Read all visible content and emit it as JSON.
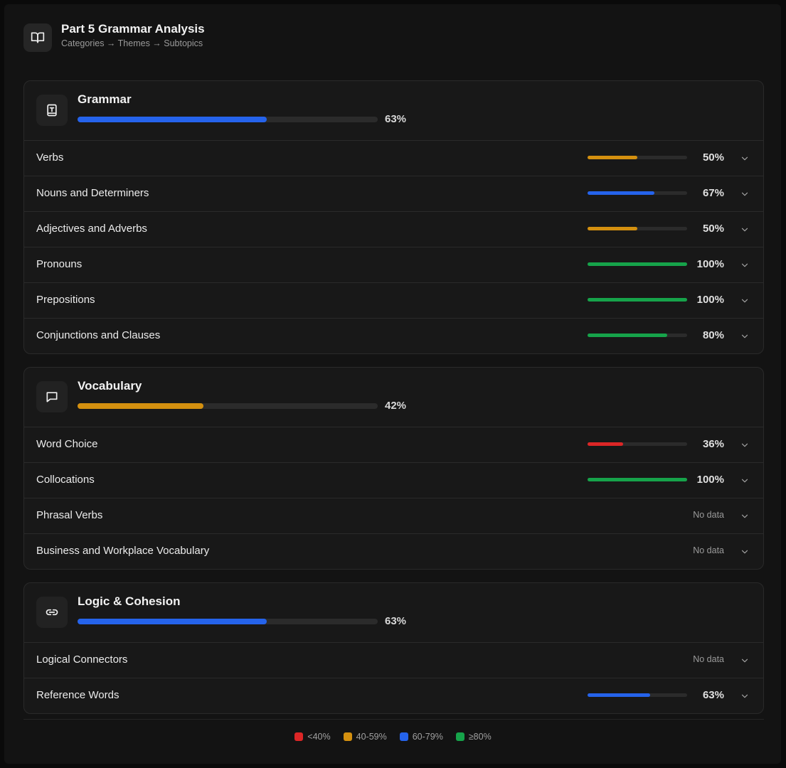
{
  "header": {
    "title": "Part 5 Grammar Analysis",
    "subtitle": "Categories → Themes → Subtopics"
  },
  "cards": [
    {
      "name": "Grammar",
      "icon": "book",
      "score": {
        "value": 63,
        "label": "63%",
        "color": "#2563eb"
      },
      "topics": [
        {
          "name": "Verbs",
          "score": {
            "value": 50,
            "label": "50%",
            "color": "#d4900f"
          }
        },
        {
          "name": "Nouns and Determiners",
          "score": {
            "value": 67,
            "label": "67%",
            "color": "#2563eb"
          }
        },
        {
          "name": "Adjectives and Adverbs",
          "score": {
            "value": 50,
            "label": "50%",
            "color": "#d4900f"
          }
        },
        {
          "name": "Pronouns",
          "score": {
            "value": 100,
            "label": "100%",
            "color": "#16a34a"
          }
        },
        {
          "name": "Prepositions",
          "score": {
            "value": 100,
            "label": "100%",
            "color": "#16a34a"
          }
        },
        {
          "name": "Conjunctions and Clauses",
          "score": {
            "value": 80,
            "label": "80%",
            "color": "#16a34a"
          }
        }
      ]
    },
    {
      "name": "Vocabulary",
      "icon": "chat",
      "score": {
        "value": 42,
        "label": "42%",
        "color": "#d4900f"
      },
      "topics": [
        {
          "name": "Word Choice",
          "score": {
            "value": 36,
            "label": "36%",
            "color": "#dc2626"
          }
        },
        {
          "name": "Collocations",
          "score": {
            "value": 100,
            "label": "100%",
            "color": "#16a34a"
          }
        },
        {
          "name": "Phrasal Verbs",
          "score": {
            "label": "No data"
          }
        },
        {
          "name": "Business and Workplace Vocabulary",
          "score": {
            "label": "No data"
          }
        }
      ]
    },
    {
      "name": "Logic & Cohesion",
      "icon": "link",
      "score": {
        "value": 63,
        "label": "63%",
        "color": "#2563eb"
      },
      "topics": [
        {
          "name": "Logical Connectors",
          "score": {
            "label": "No data"
          }
        },
        {
          "name": "Reference Words",
          "score": {
            "value": 63,
            "label": "63%",
            "color": "#2563eb"
          }
        }
      ]
    }
  ],
  "legend": [
    {
      "label": "<40%",
      "color": "#dc2626"
    },
    {
      "label": "40-59%",
      "color": "#d4900f"
    },
    {
      "label": "60-79%",
      "color": "#2563eb"
    },
    {
      "label": "≥80%",
      "color": "#16a34a"
    }
  ]
}
